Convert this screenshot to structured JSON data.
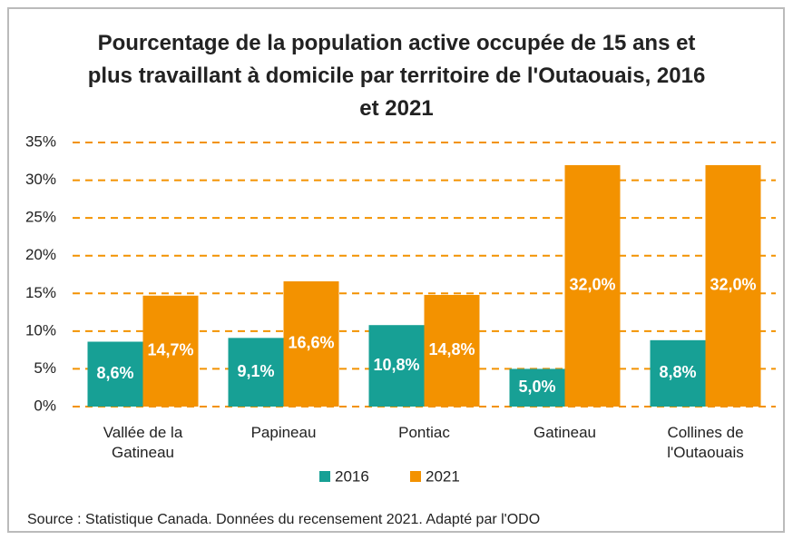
{
  "chart_data": {
    "type": "bar",
    "title": "Pourcentage de la population active occupée de 15 ans et plus travaillant à domicile par territoire de l'Outaouais, 2016 et 2021",
    "categories": [
      "Vallée de la Gatineau",
      "Papineau",
      "Pontiac",
      "Gatineau",
      "Collines de l'Outaouais"
    ],
    "series": [
      {
        "name": "2016",
        "color": "#17a095",
        "values": [
          8.6,
          9.1,
          10.8,
          5.0,
          8.8
        ],
        "value_labels": [
          "8,6%",
          "9,1%",
          "10,8%",
          "5,0%",
          "8,8%"
        ]
      },
      {
        "name": "2021",
        "color": "#f39200",
        "values": [
          14.7,
          16.6,
          14.8,
          32.0,
          32.0
        ],
        "value_labels": [
          "14,7%",
          "16,6%",
          "14,8%",
          "32,0%",
          "32,0%"
        ]
      }
    ],
    "ylim": [
      0,
      35
    ],
    "yticks": [
      {
        "value": 0,
        "label": "0%"
      },
      {
        "value": 5,
        "label": "5%"
      },
      {
        "value": 10,
        "label": "10%"
      },
      {
        "value": 15,
        "label": "15%"
      },
      {
        "value": 20,
        "label": "20%"
      },
      {
        "value": 25,
        "label": "25%"
      },
      {
        "value": 30,
        "label": "30%"
      },
      {
        "value": 35,
        "label": "35%"
      }
    ],
    "grid": true,
    "grid_color": "#f39200",
    "source": "Source : Statistique Canada. Données du recensement 2021. Adapté par l'ODO"
  }
}
